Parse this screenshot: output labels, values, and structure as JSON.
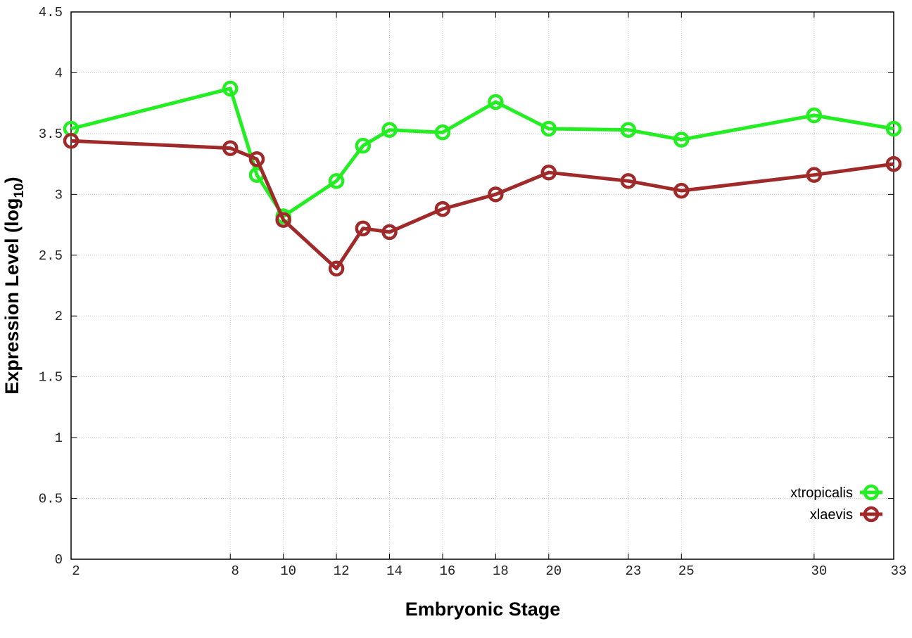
{
  "chart_data": {
    "type": "line",
    "title": "",
    "xlabel": "Embryonic Stage",
    "ylabel_main": "Expression Level (log",
    "ylabel_sub": "10",
    "ylabel_close": ")",
    "xlim": [
      2,
      33
    ],
    "ylim": [
      0,
      4.5
    ],
    "y_ticks": [
      0,
      0.5,
      1,
      1.5,
      2,
      2.5,
      3,
      3.5,
      4,
      4.5
    ],
    "y_tick_labels": [
      "0",
      "0.5",
      "1",
      "1.5",
      "2",
      "2.5",
      "3",
      "3.5",
      "4",
      "4.5"
    ],
    "x_ticks": [
      2,
      8,
      10,
      12,
      14,
      16,
      18,
      20,
      23,
      25,
      30,
      33
    ],
    "x_tick_labels": [
      "2",
      "8",
      "10",
      "12",
      "14",
      "16",
      "18",
      "20",
      "23",
      "25",
      "30",
      "33"
    ],
    "x": [
      2,
      8,
      9,
      10,
      12,
      13,
      14,
      16,
      18,
      20,
      23,
      25,
      30,
      33
    ],
    "grid": true,
    "legend_position": "bottom-right",
    "series": [
      {
        "name": "xtropicalis",
        "color": "#22ee22",
        "values": [
          3.54,
          3.87,
          3.16,
          2.82,
          3.11,
          3.4,
          3.53,
          3.51,
          3.76,
          3.54,
          3.53,
          3.45,
          3.65,
          3.54
        ]
      },
      {
        "name": "xlaevis",
        "color": "#a02a2a",
        "values": [
          3.44,
          3.38,
          3.29,
          2.79,
          2.39,
          2.72,
          2.69,
          2.88,
          3.0,
          3.18,
          3.11,
          3.03,
          3.16,
          3.25
        ]
      }
    ]
  }
}
